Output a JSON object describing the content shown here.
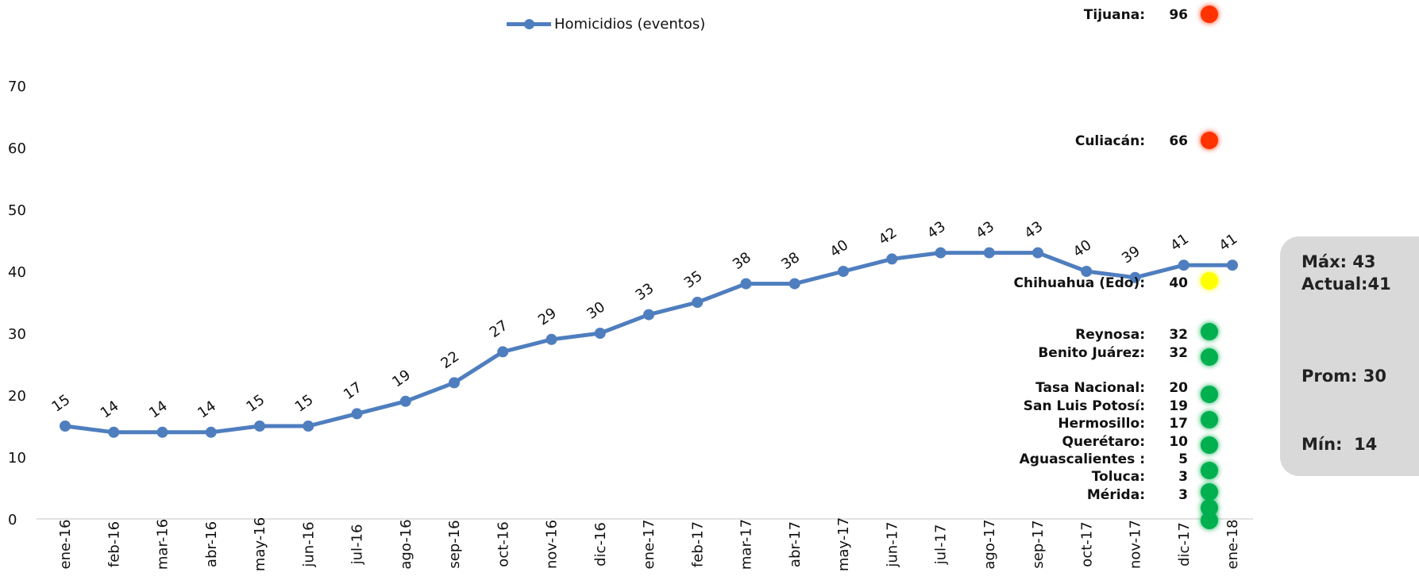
{
  "chart_data": {
    "type": "line",
    "categories": [
      "ene-16",
      "feb-16",
      "mar-16",
      "abr-16",
      "may-16",
      "jun-16",
      "jul-16",
      "ago-16",
      "sep-16",
      "oct-16",
      "nov-16",
      "dic-16",
      "ene-17",
      "feb-17",
      "mar-17",
      "abr-17",
      "may-17",
      "jun-17",
      "jul-17",
      "ago-17",
      "sep-17",
      "oct-17",
      "nov-17",
      "dic-17",
      "ene-18"
    ],
    "series": [
      {
        "name": "Homicidios (eventos)",
        "color": "#4f7ebf",
        "values": [
          15,
          14,
          14,
          14,
          15,
          15,
          17,
          19,
          22,
          27,
          29,
          30,
          33,
          35,
          38,
          38,
          40,
          42,
          43,
          43,
          43,
          40,
          39,
          41,
          41
        ]
      }
    ],
    "y_ticks": [
      "0",
      "10",
      "20",
      "30",
      "40",
      "50",
      "60",
      "70"
    ],
    "ylim": [
      0,
      70
    ],
    "title": "",
    "xlabel": "",
    "ylabel": "",
    "grid": false,
    "legend_position": "top-center"
  },
  "comparisons": [
    {
      "city": "Tijuana:",
      "value": "96",
      "value_num": 96,
      "status_color": "#ff3300"
    },
    {
      "city": "Culiacán:",
      "value": "66",
      "value_num": 66,
      "status_color": "#ff3300"
    },
    {
      "city": "Chihuahua (Edo):",
      "value": "40",
      "value_num": 40,
      "status_color": "#ffff00"
    },
    {
      "city": "Reynosa:",
      "value": "32",
      "value_num": 32,
      "status_color": "#00b050"
    },
    {
      "city": "Benito Juárez:",
      "value": "32",
      "value_num": 32,
      "status_color": "#00b050"
    },
    {
      "city": "Tasa Nacional:",
      "value": "20",
      "value_num": 20,
      "status_color": "#00b050"
    },
    {
      "city": "San Luis Potosí:",
      "value": "19",
      "value_num": 19,
      "status_color": "#00b050"
    },
    {
      "city": "Hermosillo:",
      "value": "17",
      "value_num": 17,
      "status_color": "#00b050"
    },
    {
      "city": "Querétaro:",
      "value": "10",
      "value_num": 10,
      "status_color": "#00b050"
    },
    {
      "city": "Aguascalientes :",
      "value": "5",
      "value_num": 5,
      "status_color": "#00b050"
    },
    {
      "city": "Toluca:",
      "value": "3",
      "value_num": 3,
      "status_color": "#00b050"
    },
    {
      "city": "Mérida:",
      "value": "3",
      "value_num": 3,
      "status_color": "#00b050"
    }
  ],
  "summary": {
    "max_label": "Máx: 43",
    "current_label": "Actual:41",
    "avg_label": "Prom: 30",
    "min_label": "Mín:  14"
  }
}
